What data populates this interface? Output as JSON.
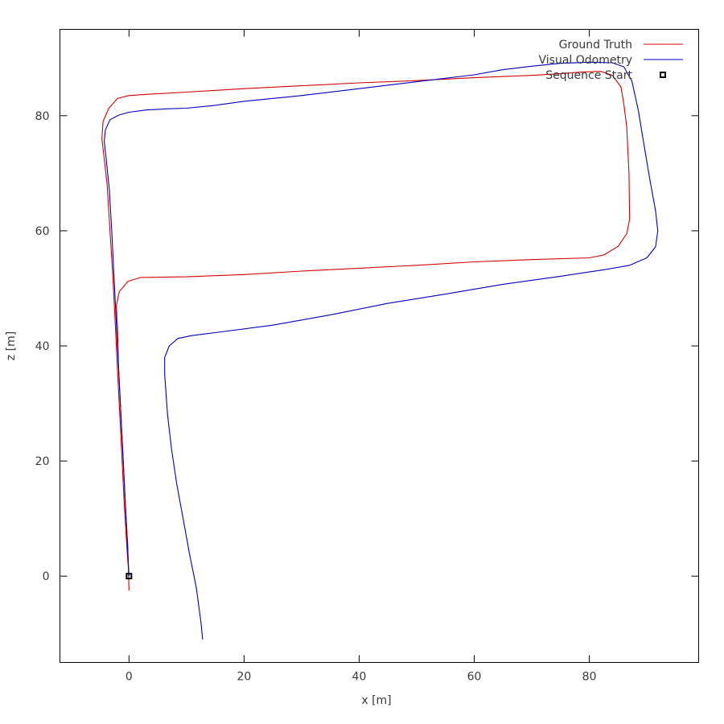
{
  "chart_data": {
    "type": "line",
    "title": "",
    "xlabel": "x [m]",
    "ylabel": "z [m]",
    "xlim": [
      -12,
      99
    ],
    "ylim": [
      -15,
      95
    ],
    "x_ticks": [
      "0",
      "20",
      "40",
      "60",
      "80"
    ],
    "y_ticks": [
      "0",
      "20",
      "40",
      "60",
      "80"
    ],
    "x_tick_values": [
      0,
      20,
      40,
      60,
      80
    ],
    "y_tick_values": [
      0,
      20,
      40,
      60,
      80
    ],
    "grid": false,
    "legend": "top-right",
    "series": [
      {
        "name": "Ground Truth",
        "color": "#d40000",
        "points": [
          [
            0,
            -2.5
          ],
          [
            -0.2,
            5
          ],
          [
            -0.6,
            12
          ],
          [
            -1,
            20
          ],
          [
            -1.4,
            28
          ],
          [
            -1.8,
            36
          ],
          [
            -2,
            43
          ],
          [
            -2.2,
            47
          ],
          [
            -1.7,
            49.4
          ],
          [
            -0.2,
            51.2
          ],
          [
            2,
            51.9
          ],
          [
            10,
            52
          ],
          [
            20,
            52.4
          ],
          [
            30,
            53
          ],
          [
            40,
            53.5
          ],
          [
            50,
            54
          ],
          [
            60,
            54.6
          ],
          [
            70,
            55
          ],
          [
            80,
            55.3
          ],
          [
            82.5,
            55.8
          ],
          [
            85,
            57.3
          ],
          [
            86.5,
            59.5
          ],
          [
            87,
            62
          ],
          [
            86.9,
            70
          ],
          [
            86.5,
            78
          ],
          [
            86,
            82
          ],
          [
            85.5,
            85
          ],
          [
            84,
            87
          ],
          [
            82,
            87.7
          ],
          [
            79,
            87.6
          ],
          [
            75,
            87.3
          ],
          [
            70,
            87
          ],
          [
            60,
            86.6
          ],
          [
            50,
            86.1
          ],
          [
            40,
            85.7
          ],
          [
            30,
            85.2
          ],
          [
            20,
            84.7
          ],
          [
            10,
            84.1
          ],
          [
            3,
            83.7
          ],
          [
            0,
            83.5
          ],
          [
            -2,
            83
          ],
          [
            -3.5,
            81.3
          ],
          [
            -4.5,
            79
          ],
          [
            -4.7,
            76
          ],
          [
            -3.8,
            68
          ],
          [
            -3.3,
            60
          ],
          [
            -2.8,
            52
          ],
          [
            -2.4,
            44
          ],
          [
            -2,
            36
          ],
          [
            -1.6,
            28
          ],
          [
            -1.2,
            20
          ],
          [
            -0.8,
            12
          ],
          [
            -0.3,
            4
          ],
          [
            0,
            0
          ]
        ]
      },
      {
        "name": "Visual Odometry",
        "color": "#0000c8",
        "points": [
          [
            0,
            0
          ],
          [
            -0.4,
            8
          ],
          [
            -0.8,
            16
          ],
          [
            -1.2,
            24
          ],
          [
            -1.6,
            32
          ],
          [
            -2,
            40
          ],
          [
            -2.3,
            46
          ],
          [
            -2.6,
            52
          ],
          [
            -3,
            60
          ],
          [
            -3.4,
            67
          ],
          [
            -3.9,
            72
          ],
          [
            -4.3,
            75.5
          ],
          [
            -4.1,
            77.5
          ],
          [
            -3.3,
            79.3
          ],
          [
            -1.8,
            80.1
          ],
          [
            0,
            80.6
          ],
          [
            3,
            81
          ],
          [
            7,
            81.2
          ],
          [
            10,
            81.3
          ],
          [
            15,
            81.8
          ],
          [
            20,
            82.5
          ],
          [
            30,
            83.5
          ],
          [
            40,
            84.7
          ],
          [
            50,
            85.9
          ],
          [
            60,
            87.1
          ],
          [
            65,
            88
          ],
          [
            70,
            88.6
          ],
          [
            75,
            89.1
          ],
          [
            80,
            89.3
          ],
          [
            84,
            89.2
          ],
          [
            86,
            88.5
          ],
          [
            87.4,
            86
          ],
          [
            88.5,
            81
          ],
          [
            89.5,
            75
          ],
          [
            90.5,
            69
          ],
          [
            91.5,
            63.5
          ],
          [
            91.9,
            60
          ],
          [
            91.5,
            57.2
          ],
          [
            90,
            55.3
          ],
          [
            87,
            54
          ],
          [
            83,
            53.3
          ],
          [
            75,
            52.1
          ],
          [
            65,
            50.7
          ],
          [
            55,
            49
          ],
          [
            45,
            47.4
          ],
          [
            35,
            45.4
          ],
          [
            25,
            43.6
          ],
          [
            15,
            42.3
          ],
          [
            11,
            41.8
          ],
          [
            8.5,
            41.3
          ],
          [
            7,
            40
          ],
          [
            6.2,
            38
          ],
          [
            6.2,
            35
          ],
          [
            6.7,
            28
          ],
          [
            7.4,
            22
          ],
          [
            8.3,
            16
          ],
          [
            9.4,
            10
          ],
          [
            10.5,
            4
          ],
          [
            11.7,
            -2
          ],
          [
            12.5,
            -8
          ],
          [
            12.8,
            -11
          ]
        ]
      }
    ],
    "markers": [
      {
        "name": "Sequence Start",
        "color": "#000000",
        "shape": "square",
        "points": [
          [
            0,
            0
          ]
        ]
      }
    ]
  }
}
